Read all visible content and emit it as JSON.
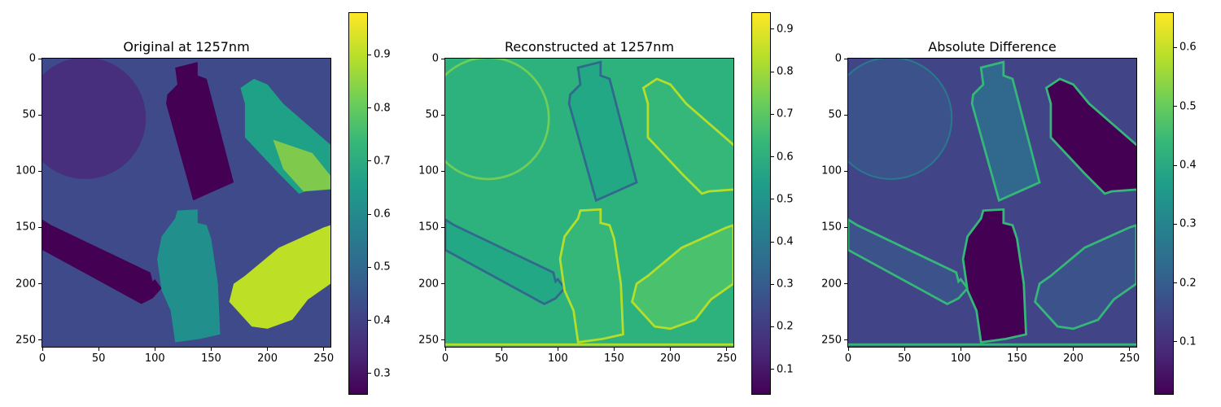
{
  "figure": {
    "panels": [
      {
        "title": "Original at 1257nm",
        "colorbar": {
          "min": 0.26,
          "max": 0.98,
          "ticks": [
            0.3,
            0.4,
            0.5,
            0.6,
            0.7,
            0.8,
            0.9
          ],
          "tick_labels": [
            "0.3",
            "0.4",
            "0.5",
            "0.6",
            "0.7",
            "0.8",
            "0.9"
          ]
        }
      },
      {
        "title": "Reconstructed at 1257nm",
        "colorbar": {
          "min": 0.04,
          "max": 0.94,
          "ticks": [
            0.1,
            0.2,
            0.3,
            0.4,
            0.5,
            0.6,
            0.7,
            0.8,
            0.9
          ],
          "tick_labels": [
            "0.1",
            "0.2",
            "0.3",
            "0.4",
            "0.5",
            "0.6",
            "0.7",
            "0.8",
            "0.9"
          ]
        }
      },
      {
        "title": "Absolute Difference",
        "colorbar": {
          "min": 0.01,
          "max": 0.66,
          "ticks": [
            0.1,
            0.2,
            0.3,
            0.4,
            0.5,
            0.6
          ],
          "tick_labels": [
            "0.1",
            "0.2",
            "0.3",
            "0.4",
            "0.5",
            "0.6"
          ]
        }
      }
    ],
    "axis_ticks": [
      0,
      50,
      100,
      150,
      200,
      250
    ],
    "axis_tick_labels": [
      "0",
      "50",
      "100",
      "150",
      "200",
      "250"
    ]
  },
  "chart_data": [
    {
      "type": "heatmap",
      "title": "Original at 1257nm",
      "xlim": [
        0,
        255
      ],
      "ylim": [
        255,
        0
      ],
      "colormap": "viridis",
      "colorbar_range": [
        0.26,
        0.98
      ],
      "background_value": 0.45
    },
    {
      "type": "heatmap",
      "title": "Reconstructed at 1257nm",
      "xlim": [
        0,
        255
      ],
      "ylim": [
        255,
        0
      ],
      "colormap": "viridis",
      "colorbar_range": [
        0.04,
        0.94
      ],
      "background_value": 0.62
    },
    {
      "type": "heatmap",
      "title": "Absolute Difference",
      "xlim": [
        0,
        255
      ],
      "ylim": [
        255,
        0
      ],
      "colormap": "viridis",
      "colorbar_range": [
        0.01,
        0.66
      ],
      "background_value": 0.17
    }
  ],
  "colors": {
    "c_bg1": "#3e4a89",
    "c_disc": "#472f7d",
    "c_b1": "#440154",
    "c_b2": "#1fa187",
    "c_b2b": "#a8db34",
    "c_b3": "#440154",
    "c_b4": "#21908d",
    "c_b5": "#bddf26",
    "r_bg": "#2db27d",
    "r_body": "#22a884",
    "r_edge_lo": "#31688e",
    "r_edge_hi": "#b5de2b",
    "d_bg": "#414487",
    "d_body_dark": "#440154",
    "d_body_mid": "#31688e",
    "d_edge": "#35b779"
  }
}
